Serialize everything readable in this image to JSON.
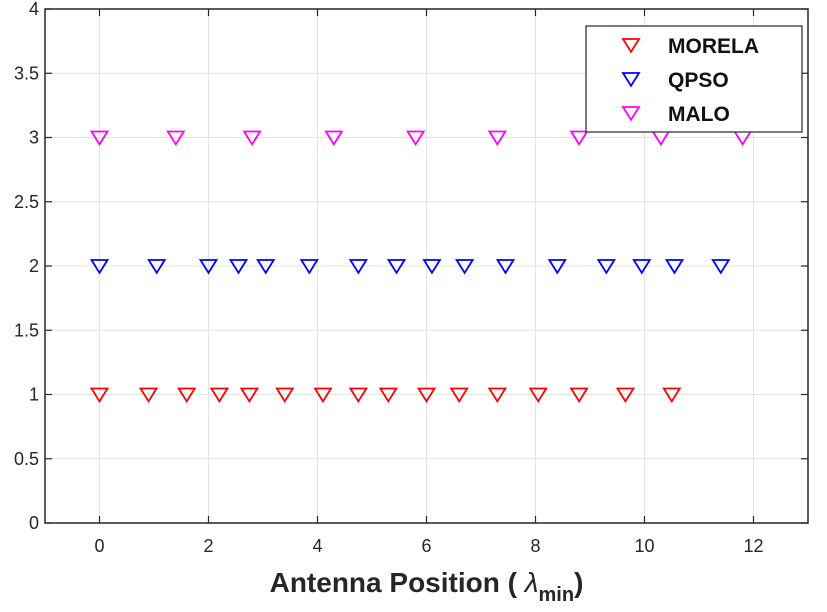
{
  "chart_data": {
    "type": "scatter",
    "title": "",
    "xlabel_main": "Antenna Position ( ",
    "xlabel_symbol": "λ",
    "xlabel_sub": "min",
    "xlabel_close": ")",
    "ylabel": "",
    "xlim": [
      -1,
      13
    ],
    "ylim": [
      0,
      4
    ],
    "xticks": [
      0,
      2,
      4,
      6,
      8,
      10,
      12
    ],
    "yticks": [
      0,
      0.5,
      1,
      1.5,
      2,
      2.5,
      3,
      3.5,
      4
    ],
    "grid": true,
    "legend_position": "top-right",
    "marker": "triangle-down",
    "series": [
      {
        "name": "MORELA",
        "color": "#ff0000",
        "y": 1,
        "x": [
          0,
          0.9,
          1.6,
          2.2,
          2.75,
          3.4,
          4.1,
          4.75,
          5.3,
          6.0,
          6.6,
          7.3,
          8.05,
          8.8,
          9.65,
          10.5
        ]
      },
      {
        "name": "QPSO",
        "color": "#0000ff",
        "y": 2,
        "x": [
          0,
          1.05,
          2.0,
          2.55,
          3.05,
          3.85,
          4.75,
          5.45,
          6.1,
          6.7,
          7.45,
          8.4,
          9.3,
          9.95,
          10.55,
          11.4
        ]
      },
      {
        "name": "MALO",
        "color": "#ff00ff",
        "y": 3,
        "x": [
          0,
          1.4,
          2.8,
          4.3,
          5.8,
          7.3,
          8.8,
          10.3,
          11.8
        ]
      }
    ]
  }
}
